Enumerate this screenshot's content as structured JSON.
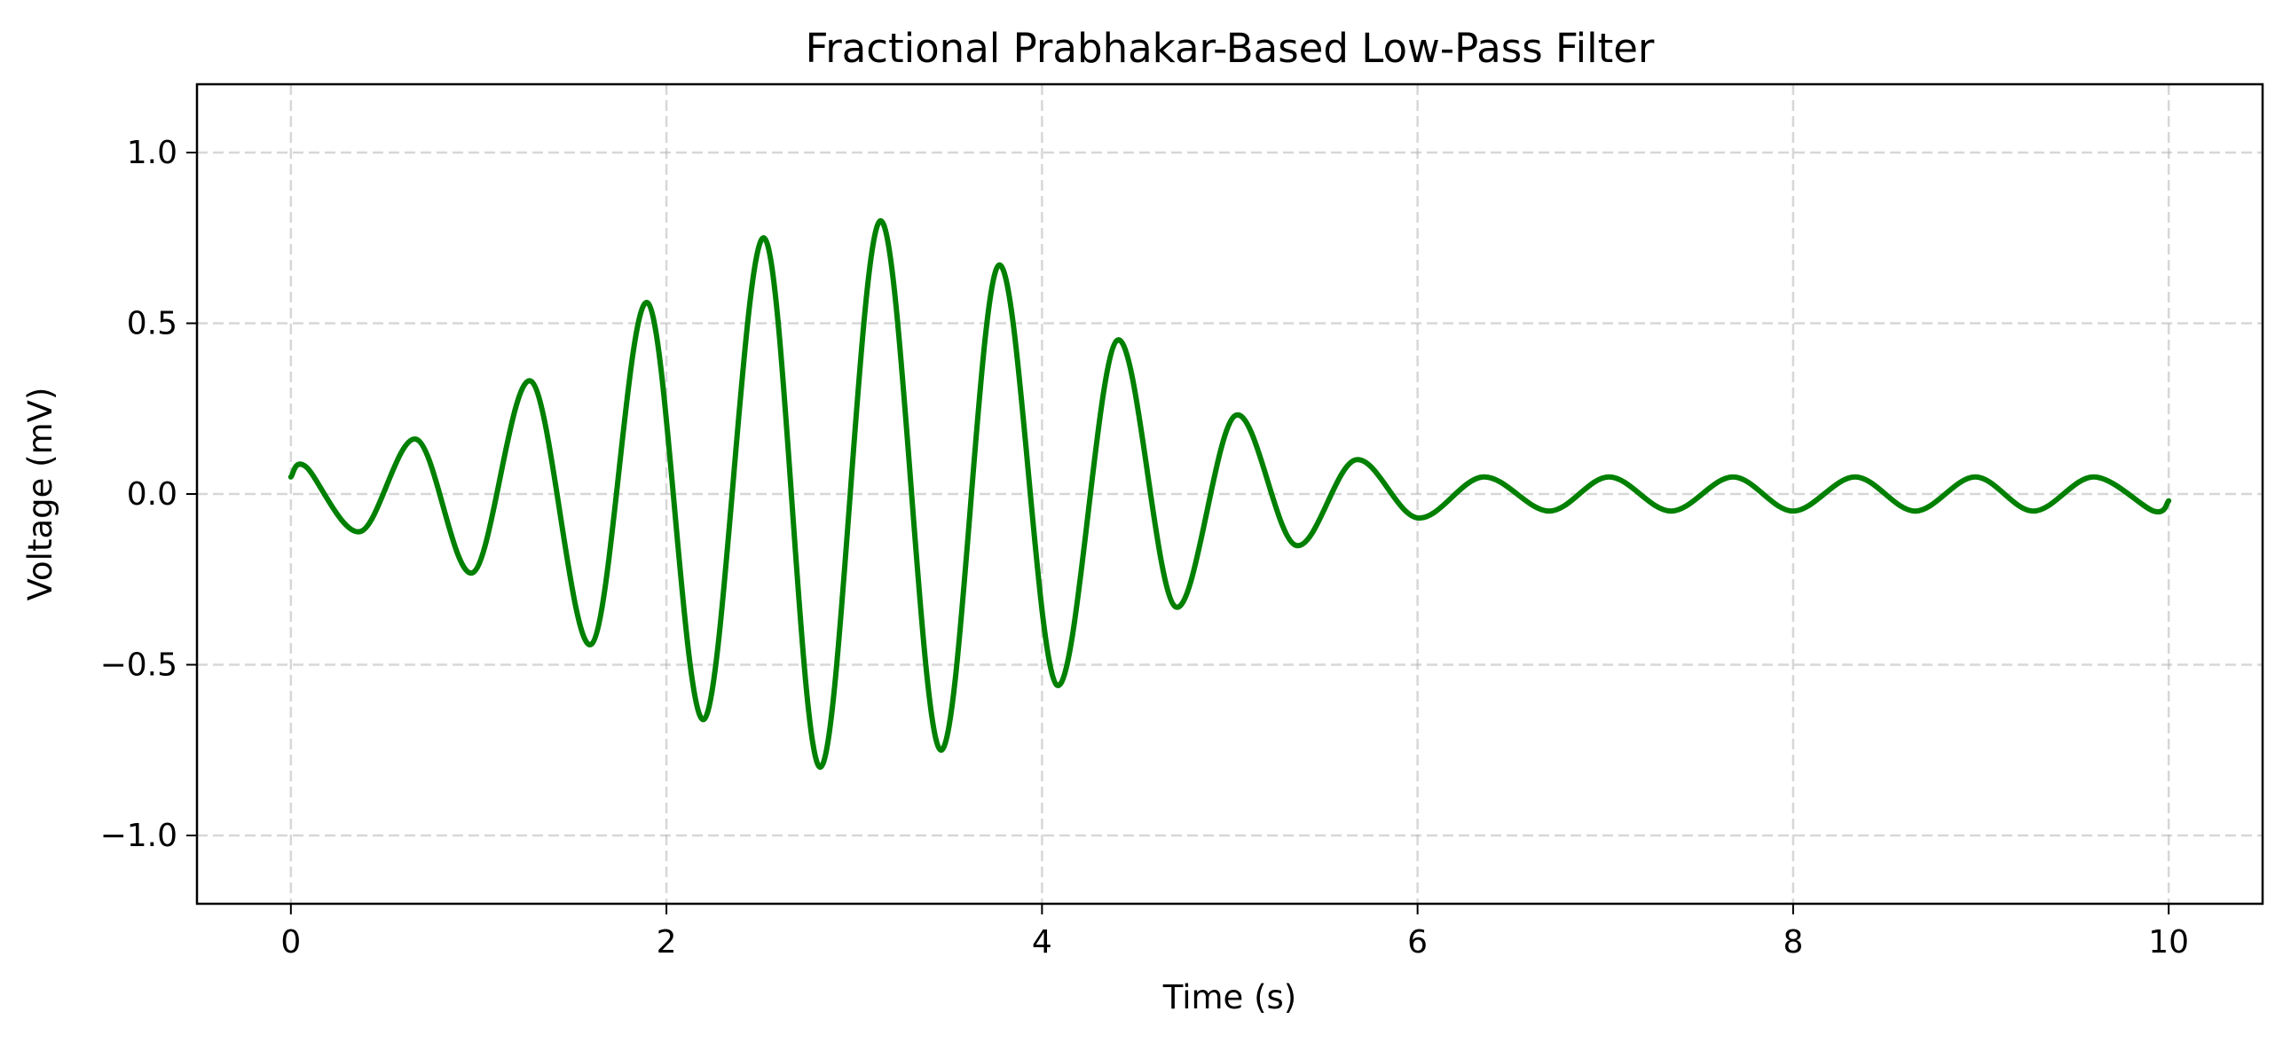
{
  "chart_data": {
    "type": "line",
    "title": "Fractional Prabhakar-Based Low-Pass Filter",
    "xlabel": "Time (s)",
    "ylabel": "Voltage (mV)",
    "xlim": [
      -0.5,
      10.5
    ],
    "ylim": [
      -1.2,
      1.2
    ],
    "xticks": [
      0,
      2,
      4,
      6,
      8,
      10
    ],
    "xtick_labels": [
      "0",
      "2",
      "4",
      "6",
      "8",
      "10"
    ],
    "yticks": [
      1.0,
      0.5,
      0.0,
      -0.5,
      -1.0
    ],
    "ytick_labels": [
      "1.0",
      "0.5",
      "0.0",
      "−0.5",
      "−1.0"
    ],
    "grid": true,
    "grid_style": "dashed",
    "series": [
      {
        "color": "#008000",
        "x": [
          0.0,
          0.08,
          0.37,
          0.67,
          0.97,
          1.28,
          1.6,
          1.9,
          2.2,
          2.52,
          2.82,
          3.14,
          3.46,
          3.77,
          4.08,
          4.4,
          4.71,
          5.03,
          5.35,
          5.67,
          6.0,
          6.35,
          6.7,
          7.02,
          7.35,
          7.68,
          8.0,
          8.33,
          8.65,
          8.97,
          9.28,
          9.6,
          9.92,
          10.0
        ],
        "y": [
          0.05,
          0.08,
          -0.11,
          0.16,
          -0.23,
          0.33,
          -0.44,
          0.56,
          -0.66,
          0.75,
          -0.8,
          0.8,
          -0.75,
          0.67,
          -0.56,
          0.45,
          -0.33,
          0.23,
          -0.15,
          0.1,
          -0.07,
          0.05,
          -0.05,
          0.05,
          -0.05,
          0.05,
          -0.05,
          0.05,
          -0.05,
          0.05,
          -0.05,
          0.05,
          -0.05,
          -0.02
        ]
      }
    ]
  }
}
